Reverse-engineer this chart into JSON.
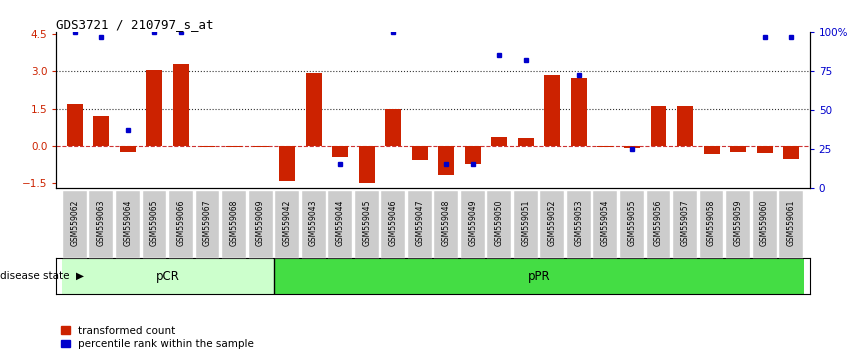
{
  "title": "GDS3721 / 210797_s_at",
  "samples": [
    "GSM559062",
    "GSM559063",
    "GSM559064",
    "GSM559065",
    "GSM559066",
    "GSM559067",
    "GSM559068",
    "GSM559069",
    "GSM559042",
    "GSM559043",
    "GSM559044",
    "GSM559045",
    "GSM559046",
    "GSM559047",
    "GSM559048",
    "GSM559049",
    "GSM559050",
    "GSM559051",
    "GSM559052",
    "GSM559053",
    "GSM559054",
    "GSM559055",
    "GSM559056",
    "GSM559057",
    "GSM559058",
    "GSM559059",
    "GSM559060",
    "GSM559061"
  ],
  "transformed_count": [
    1.7,
    1.2,
    -0.25,
    3.05,
    3.3,
    -0.05,
    -0.05,
    -0.05,
    -1.45,
    2.95,
    -0.45,
    -1.52,
    1.5,
    -0.6,
    -1.2,
    -0.75,
    0.35,
    0.3,
    2.85,
    2.75,
    -0.05,
    -0.1,
    1.6,
    1.6,
    -0.35,
    -0.25,
    -0.3,
    -0.55
  ],
  "percentile_rank": [
    100,
    97,
    37,
    100,
    100,
    null,
    null,
    null,
    null,
    null,
    15,
    null,
    100,
    null,
    15,
    15,
    85,
    82,
    null,
    72,
    null,
    25,
    null,
    null,
    null,
    null,
    97,
    97
  ],
  "pCR_indices": [
    0,
    1,
    2,
    3,
    4,
    5,
    6,
    7
  ],
  "pPR_indices": [
    8,
    9,
    10,
    11,
    12,
    13,
    14,
    15,
    16,
    17,
    18,
    19,
    20,
    21,
    22,
    23,
    24,
    25,
    26,
    27
  ],
  "bar_color": "#cc2200",
  "dot_color": "#0000cc",
  "bar_width": 0.6,
  "ylim": [
    -1.7,
    4.6
  ],
  "y2lim": [
    0,
    100
  ],
  "yticks": [
    -1.5,
    0,
    1.5,
    3,
    4.5
  ],
  "y2ticks": [
    0,
    25,
    50,
    75,
    100
  ],
  "hline_colors": [
    "#cc3333",
    "#333333",
    "#333333"
  ],
  "pCR_color": "#ccffcc",
  "pPR_color": "#44dd44",
  "label_bar": "transformed count",
  "label_dot": "percentile rank within the sample",
  "disease_state_label": "disease state",
  "pCR_label": "pCR",
  "pPR_label": "pPR",
  "tick_bg_color": "#cccccc"
}
